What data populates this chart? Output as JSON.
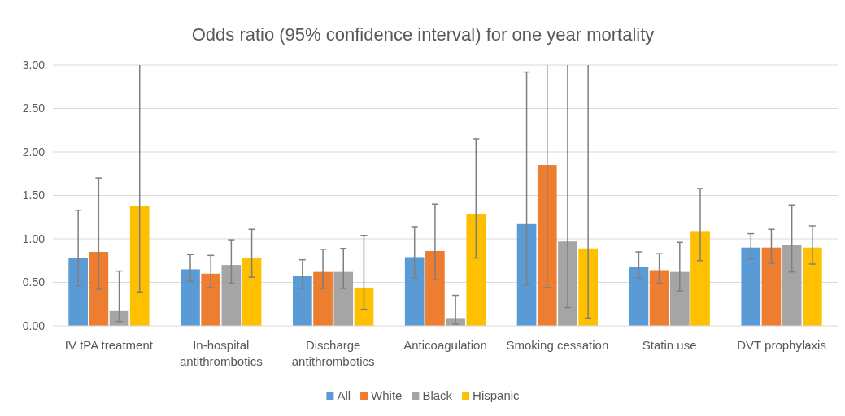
{
  "chart_data": {
    "type": "bar",
    "title": "Odds ratio (95% confidence interval) for one year mortality",
    "categories": [
      "IV tPA treatment",
      "In-hospital antithrombotics",
      "Discharge antithrombotics",
      "Anticoagulation",
      "Smoking cessation",
      "Statin use",
      "DVT prophylaxis"
    ],
    "series": [
      {
        "name": "All",
        "color": "#5b9bd5",
        "values": [
          0.78,
          0.65,
          0.57,
          0.79,
          1.17,
          0.68,
          0.9
        ],
        "errors": [
          [
            0.46,
            1.33
          ],
          [
            0.51,
            0.82
          ],
          [
            0.43,
            0.76
          ],
          [
            0.55,
            1.14
          ],
          [
            0.47,
            2.92
          ],
          [
            0.55,
            0.85
          ],
          [
            0.77,
            1.06
          ]
        ]
      },
      {
        "name": "White",
        "color": "#ed7d31",
        "values": [
          0.85,
          0.6,
          0.62,
          0.86,
          1.85,
          0.64,
          0.9
        ],
        "errors": [
          [
            0.42,
            1.7
          ],
          [
            0.44,
            0.81
          ],
          [
            0.43,
            0.88
          ],
          [
            0.53,
            1.4
          ],
          [
            0.44,
            3.0
          ],
          [
            0.49,
            0.83
          ],
          [
            0.72,
            1.11
          ]
        ]
      },
      {
        "name": "Black",
        "color": "#a5a5a5",
        "values": [
          0.17,
          0.7,
          0.62,
          0.09,
          0.97,
          0.62,
          0.93
        ],
        "errors": [
          [
            0.05,
            0.63
          ],
          [
            0.49,
            0.99
          ],
          [
            0.43,
            0.89
          ],
          [
            0.02,
            0.35
          ],
          [
            0.21,
            3.0
          ],
          [
            0.4,
            0.96
          ],
          [
            0.62,
            1.39
          ]
        ]
      },
      {
        "name": "Hispanic",
        "color": "#ffc000",
        "values": [
          1.38,
          0.78,
          0.44,
          1.29,
          0.89,
          1.09,
          0.9
        ],
        "errors": [
          [
            0.39,
            3.0
          ],
          [
            0.56,
            1.11
          ],
          [
            0.19,
            1.04
          ],
          [
            0.78,
            2.15
          ],
          [
            0.09,
            3.0
          ],
          [
            0.75,
            1.58
          ],
          [
            0.71,
            1.15
          ]
        ]
      }
    ],
    "ylim": [
      0,
      3
    ],
    "yticks": [
      {
        "value": 0,
        "label": "0.00"
      },
      {
        "value": 0.5,
        "label": "0.50"
      },
      {
        "value": 1,
        "label": "1.00"
      },
      {
        "value": 1.5,
        "label": "1.50"
      },
      {
        "value": 2,
        "label": "2.00"
      },
      {
        "value": 2.5,
        "label": "2.50"
      },
      {
        "value": 3,
        "label": "3.00"
      }
    ],
    "grid": "y",
    "legend": "bottom"
  }
}
